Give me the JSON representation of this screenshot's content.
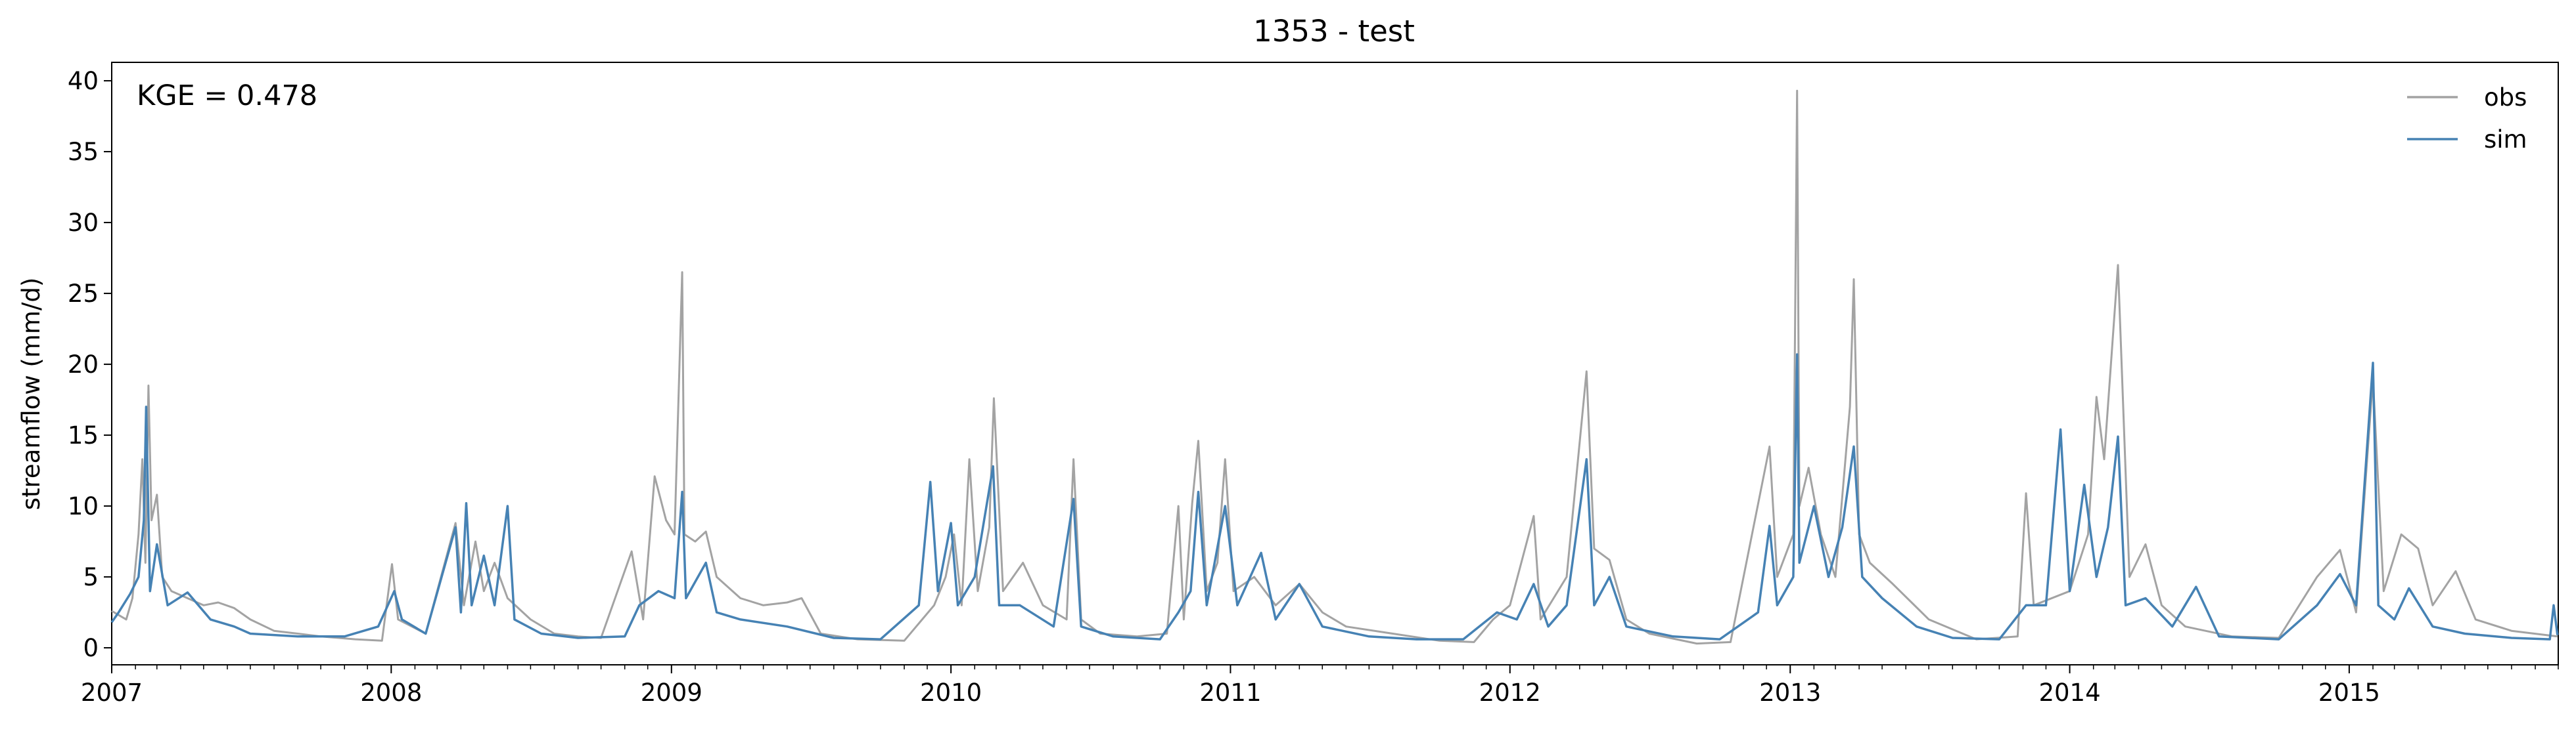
{
  "chart_data": {
    "type": "line",
    "title": "1353 - test",
    "xlabel": "",
    "ylabel": "streamflow (mm/d)",
    "annotation": "KGE = 0.478",
    "xlim": [
      "2007-01-01",
      "2015-10-01"
    ],
    "ylim": [
      -1.2,
      41.3
    ],
    "x_ticks": [
      "2007",
      "2008",
      "2009",
      "2010",
      "2011",
      "2012",
      "2013",
      "2014",
      "2015"
    ],
    "y_ticks": [
      0,
      5,
      10,
      15,
      20,
      25,
      30,
      35,
      40
    ],
    "grid": false,
    "legend_position": "top-right",
    "series": [
      {
        "name": "obs",
        "color": "#a3a3a3",
        "points": [
          [
            "2007-01-01",
            2.6
          ],
          [
            "2007-01-20",
            2.0
          ],
          [
            "2007-01-28",
            3.5
          ],
          [
            "2007-02-05",
            8.0
          ],
          [
            "2007-02-10",
            13.3
          ],
          [
            "2007-02-14",
            6.0
          ],
          [
            "2007-02-18",
            18.5
          ],
          [
            "2007-02-22",
            9.0
          ],
          [
            "2007-03-01",
            10.8
          ],
          [
            "2007-03-08",
            5.0
          ],
          [
            "2007-03-20",
            4.0
          ],
          [
            "2007-04-10",
            3.5
          ],
          [
            "2007-05-01",
            3.0
          ],
          [
            "2007-05-20",
            3.2
          ],
          [
            "2007-06-10",
            2.8
          ],
          [
            "2007-07-01",
            2.0
          ],
          [
            "2007-08-01",
            1.2
          ],
          [
            "2007-09-01",
            1.0
          ],
          [
            "2007-10-01",
            0.8
          ],
          [
            "2007-11-15",
            0.6
          ],
          [
            "2007-12-20",
            0.5
          ],
          [
            "2008-01-02",
            5.9
          ],
          [
            "2008-01-10",
            2.0
          ],
          [
            "2008-02-15",
            1.0
          ],
          [
            "2008-03-25",
            8.8
          ],
          [
            "2008-04-05",
            3.0
          ],
          [
            "2008-04-20",
            7.5
          ],
          [
            "2008-05-01",
            4.0
          ],
          [
            "2008-05-15",
            6.0
          ],
          [
            "2008-06-01",
            3.5
          ],
          [
            "2008-07-01",
            2.0
          ],
          [
            "2008-08-01",
            1.0
          ],
          [
            "2008-09-01",
            0.8
          ],
          [
            "2008-10-01",
            0.7
          ],
          [
            "2008-11-10",
            6.8
          ],
          [
            "2008-11-25",
            2.0
          ],
          [
            "2008-12-10",
            12.1
          ],
          [
            "2008-12-25",
            9.0
          ],
          [
            "2009-01-05",
            8.0
          ],
          [
            "2009-01-15",
            26.5
          ],
          [
            "2009-01-18",
            8.0
          ],
          [
            "2009-02-01",
            7.5
          ],
          [
            "2009-02-15",
            8.2
          ],
          [
            "2009-03-01",
            5.0
          ],
          [
            "2009-04-01",
            3.5
          ],
          [
            "2009-05-01",
            3.0
          ],
          [
            "2009-06-01",
            3.2
          ],
          [
            "2009-06-20",
            3.5
          ],
          [
            "2009-07-15",
            1.0
          ],
          [
            "2009-09-01",
            0.6
          ],
          [
            "2009-11-01",
            0.5
          ],
          [
            "2009-12-10",
            3.0
          ],
          [
            "2009-12-25",
            5.0
          ],
          [
            "2010-01-05",
            8.0
          ],
          [
            "2010-01-15",
            3.0
          ],
          [
            "2010-01-25",
            13.3
          ],
          [
            "2010-02-05",
            4.0
          ],
          [
            "2010-02-20",
            8.5
          ],
          [
            "2010-02-26",
            17.6
          ],
          [
            "2010-03-10",
            4.0
          ],
          [
            "2010-04-05",
            6.0
          ],
          [
            "2010-05-01",
            3.0
          ],
          [
            "2010-06-01",
            2.0
          ],
          [
            "2010-06-10",
            13.3
          ],
          [
            "2010-06-20",
            2.0
          ],
          [
            "2010-07-15",
            1.0
          ],
          [
            "2010-09-01",
            0.8
          ],
          [
            "2010-10-10",
            1.0
          ],
          [
            "2010-10-25",
            10.0
          ],
          [
            "2010-11-01",
            2.0
          ],
          [
            "2010-11-12",
            10.2
          ],
          [
            "2010-11-20",
            14.6
          ],
          [
            "2010-12-01",
            4.0
          ],
          [
            "2010-12-15",
            6.0
          ],
          [
            "2010-12-25",
            13.3
          ],
          [
            "2011-01-05",
            4.0
          ],
          [
            "2011-02-01",
            5.0
          ],
          [
            "2011-03-01",
            3.0
          ],
          [
            "2011-04-01",
            4.5
          ],
          [
            "2011-05-01",
            2.5
          ],
          [
            "2011-06-01",
            1.5
          ],
          [
            "2011-08-01",
            1.0
          ],
          [
            "2011-10-01",
            0.5
          ],
          [
            "2011-11-15",
            0.4
          ],
          [
            "2011-12-10",
            2.0
          ],
          [
            "2012-01-01",
            3.0
          ],
          [
            "2012-02-01",
            9.3
          ],
          [
            "2012-02-10",
            2.0
          ],
          [
            "2012-03-15",
            5.0
          ],
          [
            "2012-04-10",
            19.5
          ],
          [
            "2012-04-20",
            7.0
          ],
          [
            "2012-05-10",
            6.2
          ],
          [
            "2012-06-01",
            2.0
          ],
          [
            "2012-07-01",
            1.0
          ],
          [
            "2012-09-01",
            0.3
          ],
          [
            "2012-10-15",
            0.4
          ],
          [
            "2012-12-05",
            14.2
          ],
          [
            "2012-12-15",
            5.0
          ],
          [
            "2013-01-05",
            8.0
          ],
          [
            "2013-01-10",
            39.3
          ],
          [
            "2013-01-13",
            10.0
          ],
          [
            "2013-01-25",
            12.7
          ],
          [
            "2013-02-10",
            8.0
          ],
          [
            "2013-03-01",
            5.0
          ],
          [
            "2013-03-20",
            17.0
          ],
          [
            "2013-03-25",
            26.0
          ],
          [
            "2013-04-01",
            8.0
          ],
          [
            "2013-04-15",
            6.0
          ],
          [
            "2013-05-15",
            4.5
          ],
          [
            "2013-07-01",
            2.0
          ],
          [
            "2013-09-01",
            0.6
          ],
          [
            "2013-10-25",
            0.8
          ],
          [
            "2013-11-05",
            10.9
          ],
          [
            "2013-11-15",
            3.0
          ],
          [
            "2014-01-01",
            4.0
          ],
          [
            "2014-01-25",
            8.0
          ],
          [
            "2014-02-05",
            17.7
          ],
          [
            "2014-02-15",
            13.3
          ],
          [
            "2014-03-05",
            27.0
          ],
          [
            "2014-03-20",
            5.0
          ],
          [
            "2014-04-10",
            7.3
          ],
          [
            "2014-05-01",
            3.0
          ],
          [
            "2014-06-01",
            1.5
          ],
          [
            "2014-08-01",
            0.8
          ],
          [
            "2014-10-01",
            0.7
          ],
          [
            "2014-11-20",
            5.0
          ],
          [
            "2014-12-20",
            6.9
          ],
          [
            "2015-01-10",
            2.5
          ],
          [
            "2015-02-01",
            19.0
          ],
          [
            "2015-02-15",
            4.0
          ],
          [
            "2015-03-10",
            8.0
          ],
          [
            "2015-04-01",
            7.0
          ],
          [
            "2015-04-20",
            3.0
          ],
          [
            "2015-05-20",
            5.4
          ],
          [
            "2015-06-15",
            2.0
          ],
          [
            "2015-08-01",
            1.2
          ],
          [
            "2015-09-30",
            0.8
          ]
        ]
      },
      {
        "name": "sim",
        "color": "#4682b4",
        "points": [
          [
            "2007-01-01",
            1.8
          ],
          [
            "2007-01-10",
            2.5
          ],
          [
            "2007-01-25",
            3.8
          ],
          [
            "2007-02-05",
            5.0
          ],
          [
            "2007-02-12",
            9.0
          ],
          [
            "2007-02-15",
            17.0
          ],
          [
            "2007-02-20",
            4.0
          ],
          [
            "2007-03-01",
            7.3
          ],
          [
            "2007-03-15",
            3.0
          ],
          [
            "2007-04-10",
            3.9
          ],
          [
            "2007-05-10",
            2.0
          ],
          [
            "2007-06-10",
            1.5
          ],
          [
            "2007-07-01",
            1.0
          ],
          [
            "2007-09-01",
            0.8
          ],
          [
            "2007-11-01",
            0.8
          ],
          [
            "2007-12-15",
            1.5
          ],
          [
            "2008-01-05",
            4.0
          ],
          [
            "2008-01-15",
            2.0
          ],
          [
            "2008-02-15",
            1.0
          ],
          [
            "2008-03-25",
            8.5
          ],
          [
            "2008-04-01",
            2.5
          ],
          [
            "2008-04-08",
            10.2
          ],
          [
            "2008-04-15",
            3.0
          ],
          [
            "2008-05-01",
            6.5
          ],
          [
            "2008-05-15",
            3.0
          ],
          [
            "2008-06-01",
            10.0
          ],
          [
            "2008-06-10",
            2.0
          ],
          [
            "2008-07-15",
            1.0
          ],
          [
            "2008-09-01",
            0.7
          ],
          [
            "2008-11-01",
            0.8
          ],
          [
            "2008-11-20",
            3.0
          ],
          [
            "2008-12-15",
            4.0
          ],
          [
            "2009-01-05",
            3.5
          ],
          [
            "2009-01-15",
            11.0
          ],
          [
            "2009-01-20",
            3.5
          ],
          [
            "2009-02-15",
            6.0
          ],
          [
            "2009-03-01",
            2.5
          ],
          [
            "2009-04-01",
            2.0
          ],
          [
            "2009-06-01",
            1.5
          ],
          [
            "2009-08-01",
            0.7
          ],
          [
            "2009-10-01",
            0.6
          ],
          [
            "2009-11-20",
            3.0
          ],
          [
            "2009-12-05",
            11.7
          ],
          [
            "2009-12-15",
            4.0
          ],
          [
            "2010-01-01",
            8.8
          ],
          [
            "2010-01-10",
            3.0
          ],
          [
            "2010-02-01",
            5.0
          ],
          [
            "2010-02-25",
            12.8
          ],
          [
            "2010-03-05",
            3.0
          ],
          [
            "2010-04-01",
            3.0
          ],
          [
            "2010-05-15",
            1.5
          ],
          [
            "2010-06-10",
            10.5
          ],
          [
            "2010-06-20",
            1.5
          ],
          [
            "2010-08-01",
            0.8
          ],
          [
            "2010-10-01",
            0.6
          ],
          [
            "2010-10-25",
            2.5
          ],
          [
            "2010-11-10",
            4.0
          ],
          [
            "2010-11-20",
            11.0
          ],
          [
            "2010-12-01",
            3.0
          ],
          [
            "2010-12-25",
            10.0
          ],
          [
            "2011-01-10",
            3.0
          ],
          [
            "2011-02-10",
            6.7
          ],
          [
            "2011-03-01",
            2.0
          ],
          [
            "2011-04-01",
            4.5
          ],
          [
            "2011-05-01",
            1.5
          ],
          [
            "2011-07-01",
            0.8
          ],
          [
            "2011-09-01",
            0.6
          ],
          [
            "2011-11-01",
            0.6
          ],
          [
            "2011-12-15",
            2.5
          ],
          [
            "2012-01-10",
            2.0
          ],
          [
            "2012-02-01",
            4.5
          ],
          [
            "2012-02-20",
            1.5
          ],
          [
            "2012-03-15",
            3.0
          ],
          [
            "2012-04-10",
            13.3
          ],
          [
            "2012-04-20",
            3.0
          ],
          [
            "2012-05-10",
            5.0
          ],
          [
            "2012-06-01",
            1.5
          ],
          [
            "2012-08-01",
            0.8
          ],
          [
            "2012-10-01",
            0.6
          ],
          [
            "2012-11-20",
            2.5
          ],
          [
            "2012-12-05",
            8.6
          ],
          [
            "2012-12-15",
            3.0
          ],
          [
            "2013-01-05",
            5.0
          ],
          [
            "2013-01-10",
            20.7
          ],
          [
            "2013-01-13",
            6.0
          ],
          [
            "2013-02-01",
            10.0
          ],
          [
            "2013-02-20",
            5.0
          ],
          [
            "2013-03-10",
            8.5
          ],
          [
            "2013-03-25",
            14.2
          ],
          [
            "2013-04-05",
            5.0
          ],
          [
            "2013-05-01",
            3.5
          ],
          [
            "2013-06-15",
            1.5
          ],
          [
            "2013-08-01",
            0.7
          ],
          [
            "2013-10-01",
            0.6
          ],
          [
            "2013-11-05",
            3.0
          ],
          [
            "2013-12-01",
            3.0
          ],
          [
            "2013-12-20",
            15.4
          ],
          [
            "2014-01-01",
            4.0
          ],
          [
            "2014-01-20",
            11.5
          ],
          [
            "2014-02-05",
            5.0
          ],
          [
            "2014-02-20",
            8.5
          ],
          [
            "2014-03-05",
            14.9
          ],
          [
            "2014-03-15",
            3.0
          ],
          [
            "2014-04-10",
            3.5
          ],
          [
            "2014-05-15",
            1.5
          ],
          [
            "2014-06-15",
            4.3
          ],
          [
            "2014-07-15",
            0.8
          ],
          [
            "2014-10-01",
            0.6
          ],
          [
            "2014-11-20",
            3.0
          ],
          [
            "2014-12-20",
            5.2
          ],
          [
            "2015-01-10",
            3.0
          ],
          [
            "2015-02-01",
            20.1
          ],
          [
            "2015-02-08",
            3.0
          ],
          [
            "2015-03-01",
            2.0
          ],
          [
            "2015-03-20",
            4.2
          ],
          [
            "2015-04-20",
            1.5
          ],
          [
            "2015-06-01",
            1.0
          ],
          [
            "2015-08-01",
            0.7
          ],
          [
            "2015-09-20",
            0.6
          ],
          [
            "2015-09-25",
            3.0
          ],
          [
            "2015-09-30",
            0.9
          ]
        ]
      }
    ]
  }
}
